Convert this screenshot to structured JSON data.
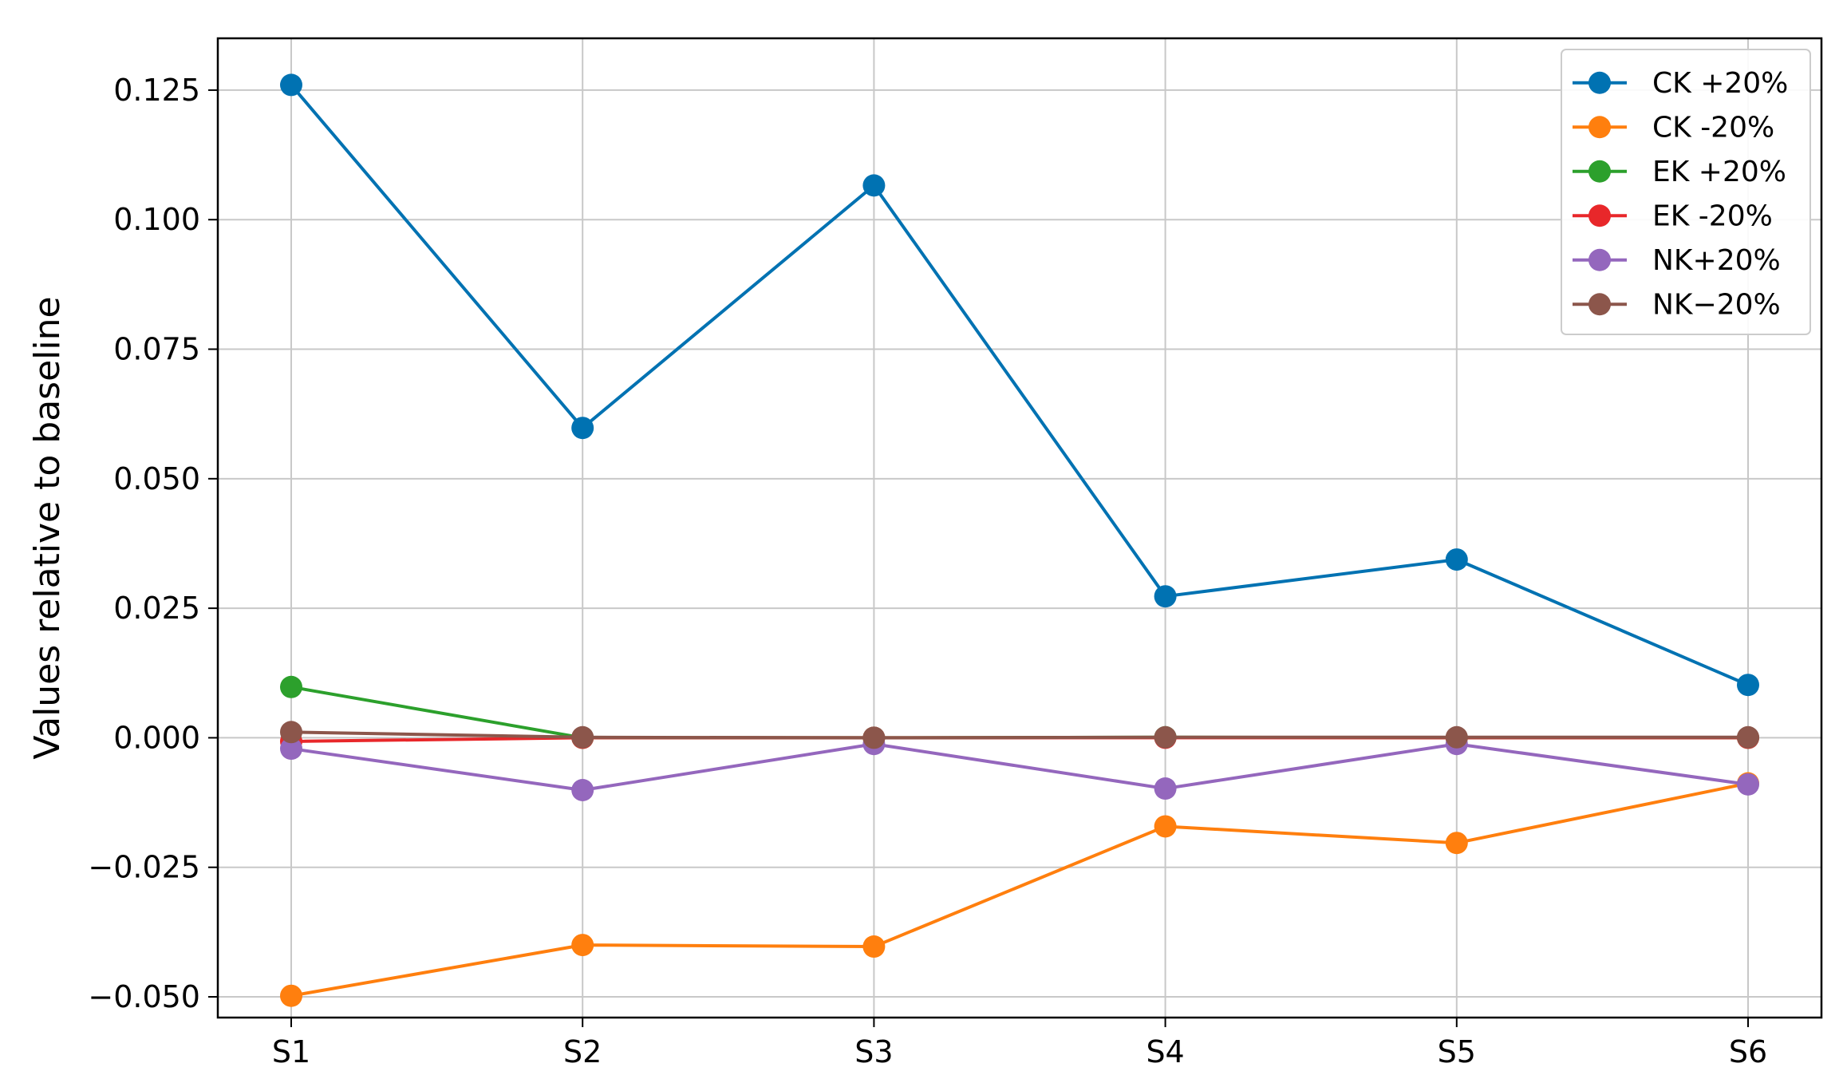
{
  "chart_data": {
    "type": "line",
    "title": "",
    "xlabel": "",
    "ylabel": "Values relative to baseline",
    "categories": [
      "S1",
      "S2",
      "S3",
      "S4",
      "S5",
      "S6"
    ],
    "ylim": [
      -0.054,
      0.135
    ],
    "yticks": [
      -0.05,
      -0.025,
      0.0,
      0.025,
      0.05,
      0.075,
      0.1,
      0.125
    ],
    "ytick_labels": [
      "−0.050",
      "−0.025",
      "0.000",
      "0.025",
      "0.050",
      "0.075",
      "0.100",
      "0.125"
    ],
    "grid": true,
    "legend": "top-right",
    "series": [
      {
        "name": "CK +20%",
        "color": "#0072B2",
        "values": [
          0.126,
          0.0598,
          0.1066,
          0.0273,
          0.0344,
          0.0102
        ]
      },
      {
        "name": "CK -20%",
        "color": "#FF7F0E",
        "values": [
          -0.0498,
          -0.04,
          -0.0403,
          -0.0171,
          -0.0203,
          -0.0088
        ]
      },
      {
        "name": "EK +20%",
        "color": "#2CA02C",
        "values": [
          0.0098,
          0.0,
          0.0,
          0.0001,
          0.0,
          0.0
        ]
      },
      {
        "name": "EK -20%",
        "color": "#E8272A",
        "values": [
          -0.0007,
          0.0,
          0.0,
          0.0,
          0.0,
          0.0
        ]
      },
      {
        "name": "NK+20%",
        "color": "#9467BD",
        "values": [
          -0.0021,
          -0.0101,
          -0.0012,
          -0.0098,
          -0.0012,
          -0.009
        ]
      },
      {
        "name": "NK−20%",
        "color": "#8C564B",
        "values": [
          0.0011,
          0.0001,
          0.0,
          0.0001,
          0.0001,
          0.0001
        ]
      }
    ]
  }
}
